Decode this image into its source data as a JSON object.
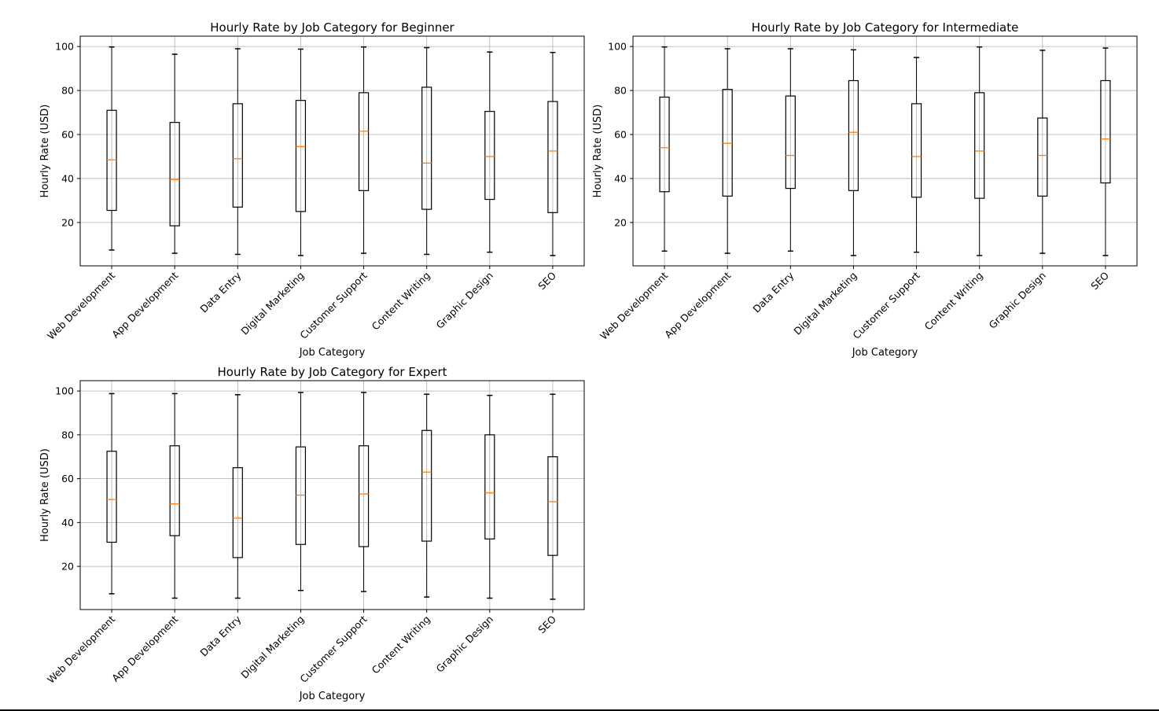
{
  "figure_title": "",
  "chart_data": [
    {
      "type": "box",
      "title": "Hourly Rate by Job Category for Beginner",
      "xlabel": "Job Category",
      "ylabel": "Hourly Rate (USD)",
      "grid": true,
      "yticks": [
        20,
        40,
        60,
        80,
        100
      ],
      "categories": [
        "Web Development",
        "App Development",
        "Data Entry",
        "Digital Marketing",
        "Customer Support",
        "Content Writing",
        "Graphic Design",
        "SEO"
      ],
      "boxes": [
        {
          "whisker_low": 7.5,
          "q1": 25.5,
          "median": 48.5,
          "q3": 71.0,
          "whisker_high": 99.8
        },
        {
          "whisker_low": 6.0,
          "q1": 18.5,
          "median": 39.5,
          "q3": 65.5,
          "whisker_high": 96.5
        },
        {
          "whisker_low": 5.5,
          "q1": 27.0,
          "median": 49.0,
          "q3": 74.0,
          "whisker_high": 99.0
        },
        {
          "whisker_low": 5.0,
          "q1": 25.0,
          "median": 54.5,
          "q3": 75.5,
          "whisker_high": 98.8
        },
        {
          "whisker_low": 6.0,
          "q1": 34.5,
          "median": 61.5,
          "q3": 79.0,
          "whisker_high": 99.8
        },
        {
          "whisker_low": 5.5,
          "q1": 26.0,
          "median": 47.0,
          "q3": 81.5,
          "whisker_high": 99.5
        },
        {
          "whisker_low": 6.5,
          "q1": 30.5,
          "median": 50.0,
          "q3": 70.5,
          "whisker_high": 97.5
        },
        {
          "whisker_low": 5.0,
          "q1": 24.5,
          "median": 52.5,
          "q3": 75.0,
          "whisker_high": 97.3
        }
      ]
    },
    {
      "type": "box",
      "title": "Hourly Rate by Job Category for Intermediate",
      "xlabel": "Job Category",
      "ylabel": "Hourly Rate (USD)",
      "grid": true,
      "yticks": [
        20,
        40,
        60,
        80,
        100
      ],
      "categories": [
        "Web Development",
        "App Development",
        "Data Entry",
        "Digital Marketing",
        "Customer Support",
        "Content Writing",
        "Graphic Design",
        "SEO"
      ],
      "boxes": [
        {
          "whisker_low": 7.0,
          "q1": 34.0,
          "median": 54.0,
          "q3": 77.0,
          "whisker_high": 99.8
        },
        {
          "whisker_low": 6.0,
          "q1": 32.0,
          "median": 56.0,
          "q3": 80.5,
          "whisker_high": 99.0
        },
        {
          "whisker_low": 7.0,
          "q1": 35.5,
          "median": 50.5,
          "q3": 77.5,
          "whisker_high": 99.0
        },
        {
          "whisker_low": 5.0,
          "q1": 34.5,
          "median": 61.0,
          "q3": 84.5,
          "whisker_high": 98.5
        },
        {
          "whisker_low": 6.5,
          "q1": 31.5,
          "median": 50.0,
          "q3": 74.0,
          "whisker_high": 95.0
        },
        {
          "whisker_low": 5.0,
          "q1": 31.0,
          "median": 52.5,
          "q3": 79.0,
          "whisker_high": 99.8
        },
        {
          "whisker_low": 6.0,
          "q1": 32.0,
          "median": 50.5,
          "q3": 67.5,
          "whisker_high": 98.3
        },
        {
          "whisker_low": 5.0,
          "q1": 38.0,
          "median": 58.0,
          "q3": 84.5,
          "whisker_high": 99.3
        }
      ]
    },
    {
      "type": "box",
      "title": "Hourly Rate by Job Category for Expert",
      "xlabel": "Job Category",
      "ylabel": "Hourly Rate (USD)",
      "grid": true,
      "yticks": [
        20,
        40,
        60,
        80,
        100
      ],
      "categories": [
        "Web Development",
        "App Development",
        "Data Entry",
        "Digital Marketing",
        "Customer Support",
        "Content Writing",
        "Graphic Design",
        "SEO"
      ],
      "boxes": [
        {
          "whisker_low": 7.5,
          "q1": 31.0,
          "median": 50.5,
          "q3": 72.5,
          "whisker_high": 98.8
        },
        {
          "whisker_low": 5.5,
          "q1": 34.0,
          "median": 48.5,
          "q3": 75.0,
          "whisker_high": 98.8
        },
        {
          "whisker_low": 5.5,
          "q1": 24.0,
          "median": 42.0,
          "q3": 65.0,
          "whisker_high": 98.3
        },
        {
          "whisker_low": 9.0,
          "q1": 30.0,
          "median": 52.5,
          "q3": 74.5,
          "whisker_high": 99.3
        },
        {
          "whisker_low": 8.5,
          "q1": 29.0,
          "median": 53.0,
          "q3": 75.0,
          "whisker_high": 99.3
        },
        {
          "whisker_low": 6.0,
          "q1": 31.5,
          "median": 63.0,
          "q3": 82.0,
          "whisker_high": 98.5
        },
        {
          "whisker_low": 5.5,
          "q1": 32.5,
          "median": 53.5,
          "q3": 80.0,
          "whisker_high": 98.0
        },
        {
          "whisker_low": 5.0,
          "q1": 25.0,
          "median": 49.5,
          "q3": 70.0,
          "whisker_high": 98.5
        }
      ]
    }
  ],
  "colors": {
    "median": "#ff7f0e",
    "box": "#000000",
    "grid": "#b0b0b0"
  }
}
